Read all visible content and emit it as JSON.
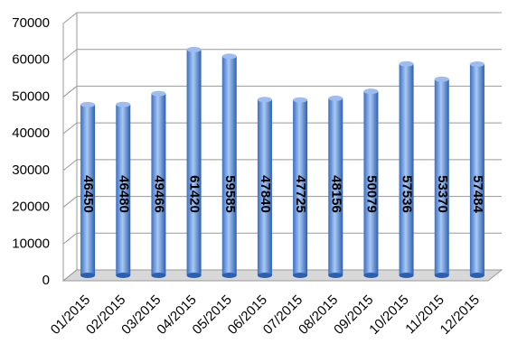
{
  "chart_data": {
    "type": "bar",
    "categories": [
      "01/2015",
      "02/2015",
      "03/2015",
      "04/2015",
      "05/2015",
      "06/2015",
      "07/2015",
      "08/2015",
      "09/2015",
      "10/2015",
      "11/2015",
      "12/2015"
    ],
    "values": [
      46450,
      46480,
      49466,
      61420,
      59585,
      47840,
      47725,
      48156,
      50079,
      57536,
      53370,
      57484
    ],
    "color": "#5b8fd6",
    "ylim": [
      0,
      70000
    ],
    "yticks": [
      0,
      10000,
      20000,
      30000,
      40000,
      50000,
      60000,
      70000
    ],
    "grid": true
  }
}
